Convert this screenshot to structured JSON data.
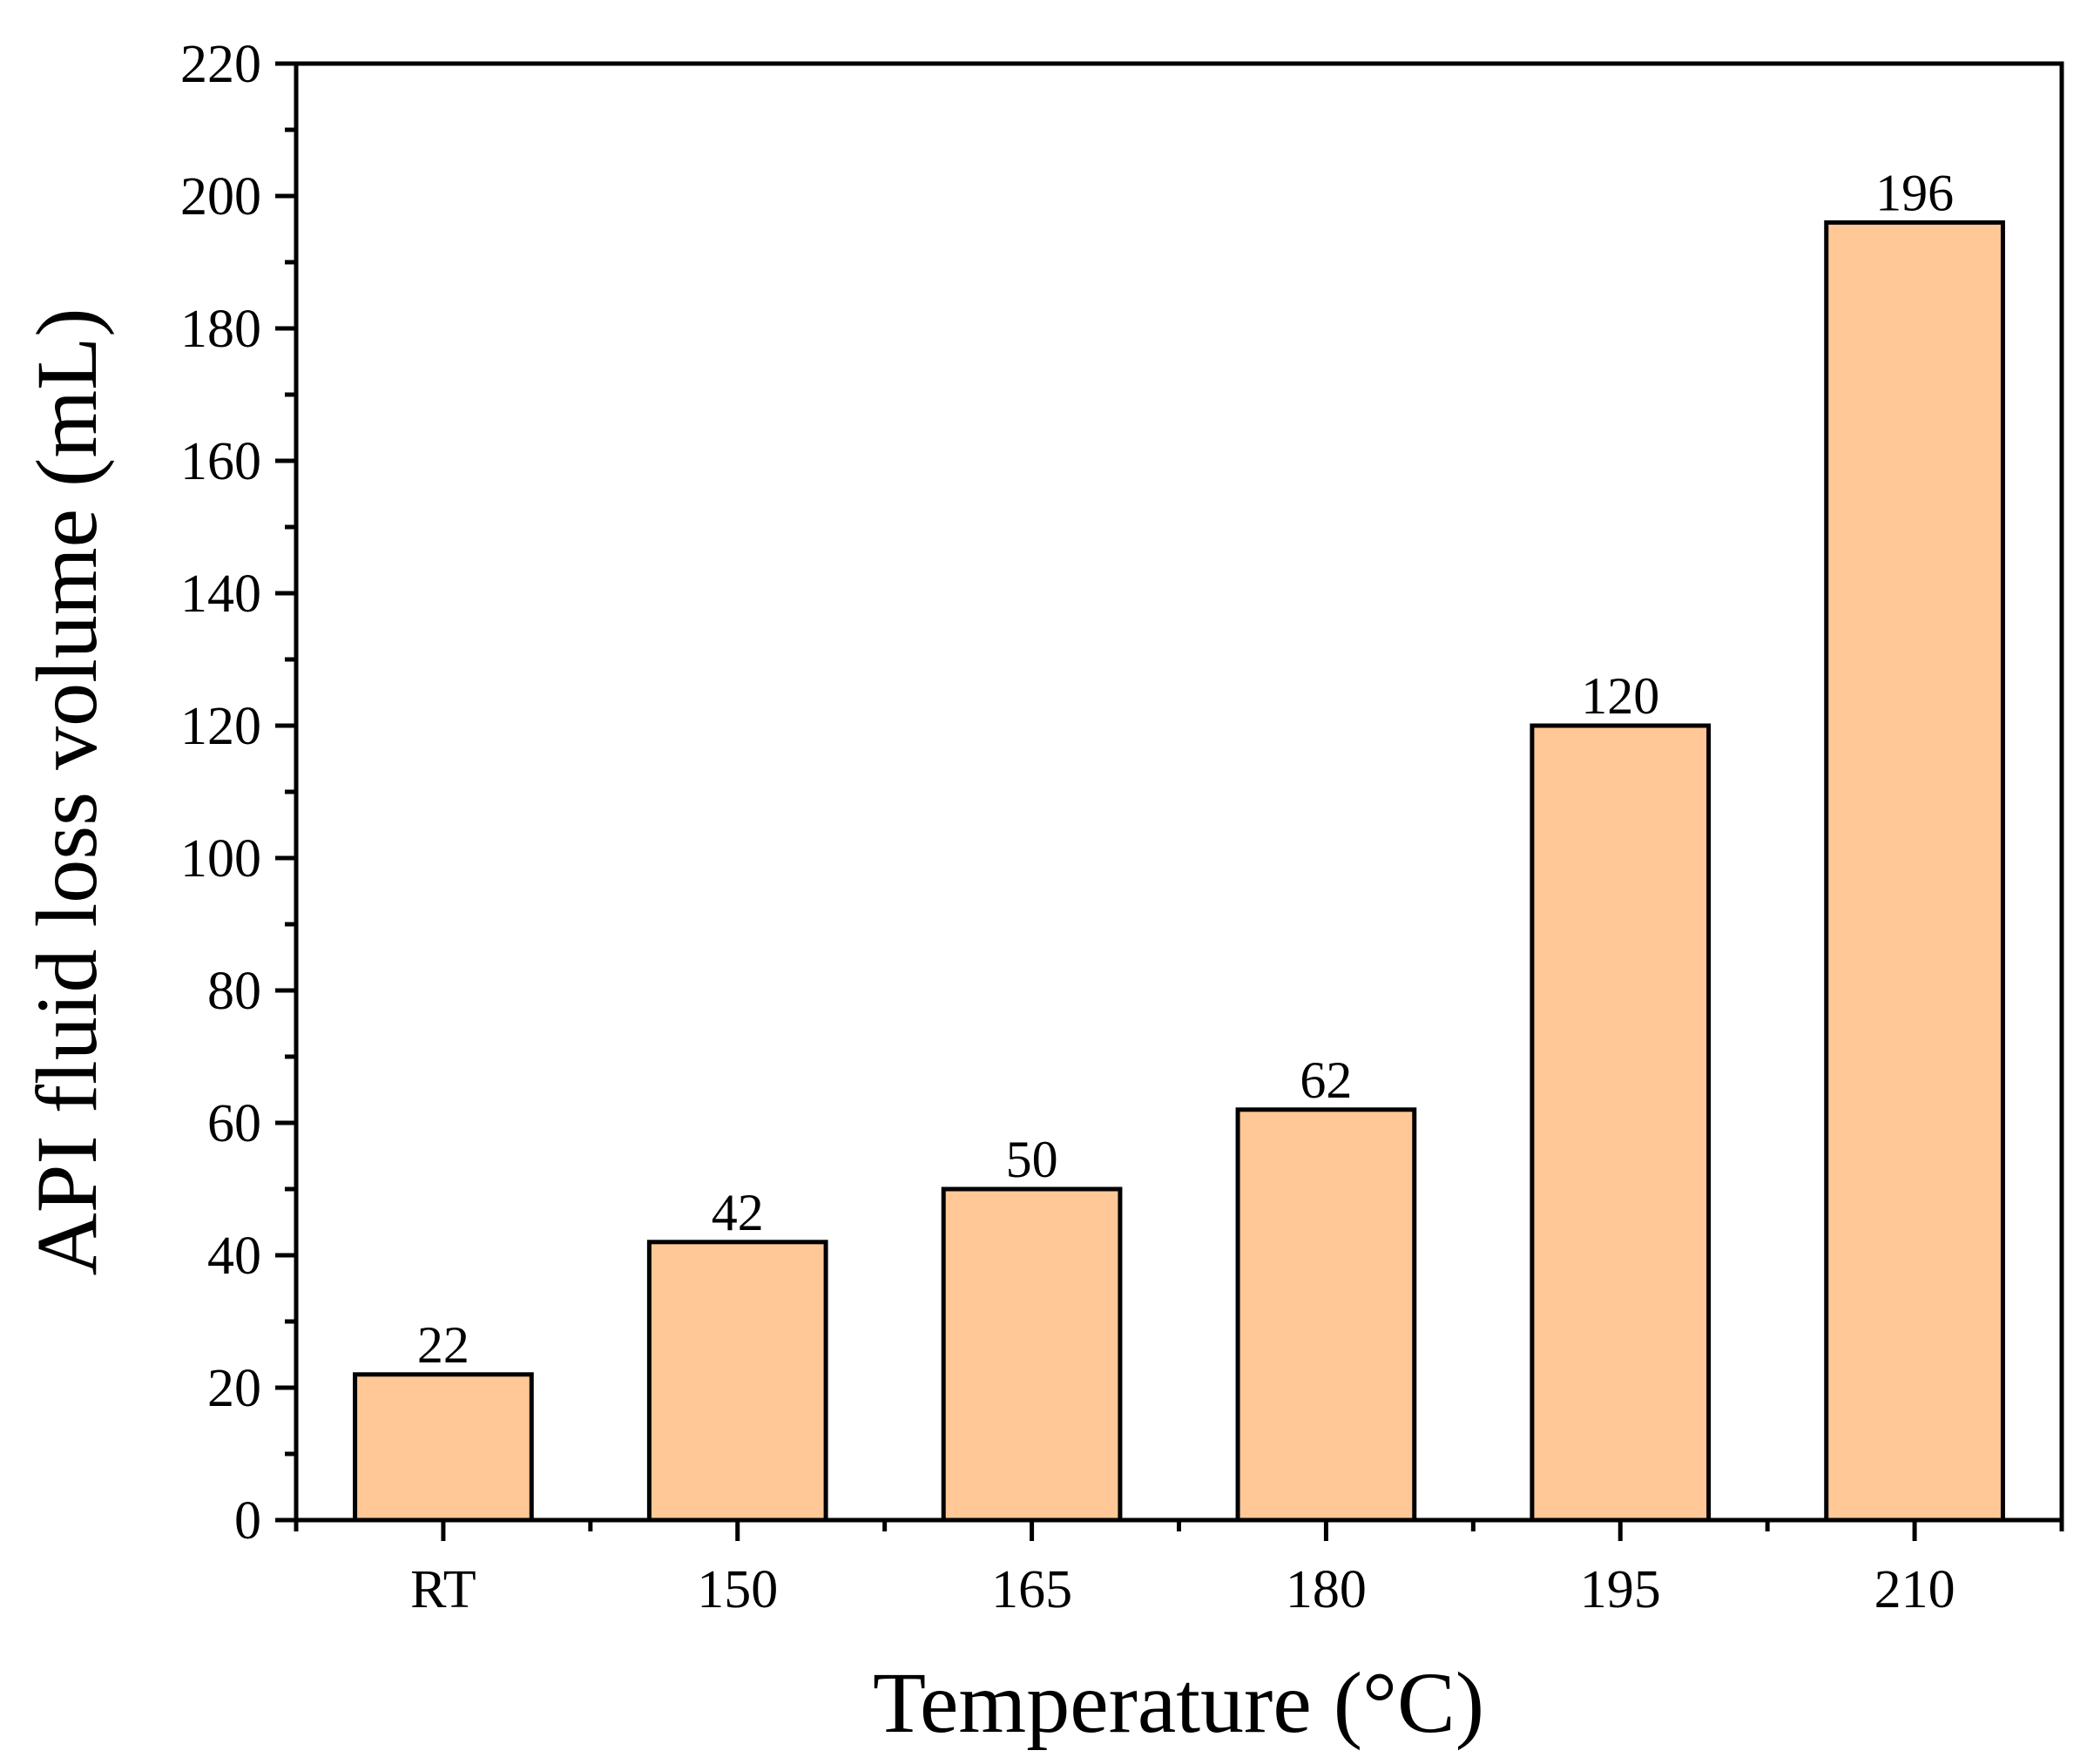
{
  "chart_data": {
    "type": "bar",
    "title": "",
    "xlabel": "Temperature (°C)",
    "ylabel": "API fluid loss volume (mL)",
    "categories": [
      "RT",
      "150",
      "165",
      "180",
      "195",
      "210"
    ],
    "values": [
      22,
      42,
      50,
      62,
      120,
      196
    ],
    "value_labels": [
      "22",
      "42",
      "50",
      "62",
      "120",
      "196"
    ],
    "ylim": [
      0,
      220
    ],
    "yticks": [
      "0",
      "20",
      "40",
      "60",
      "80",
      "100",
      "120",
      "140",
      "160",
      "180",
      "200",
      "220"
    ],
    "grid": false,
    "legend": "none",
    "bar_color": "#FFC896",
    "edge_color": "#000000"
  }
}
